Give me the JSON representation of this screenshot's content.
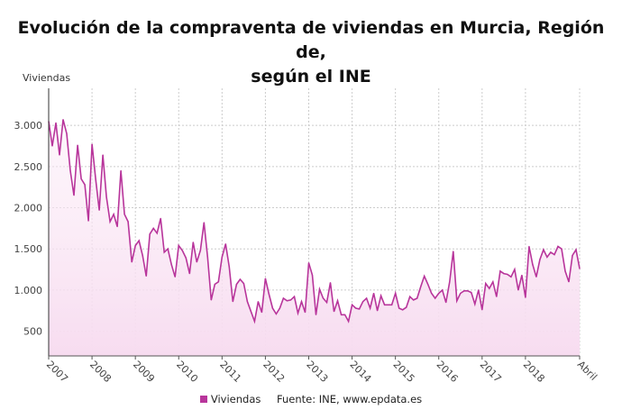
{
  "chart_data": {
    "type": "area",
    "title": "Evolución de la compraventa de viviendas en Murcia, Región de, según el INE",
    "ylabel": "Viviendas",
    "xlabel": "",
    "x_start": "2007-01",
    "x_end": "2019-04",
    "x_tick_labels": [
      "2007",
      "2008",
      "2009",
      "2010",
      "2011",
      "2012",
      "2013",
      "2014",
      "2015",
      "2016",
      "2017",
      "2018",
      "Abril"
    ],
    "y_ticks": [
      500,
      1000,
      1500,
      2000,
      2500,
      3000
    ],
    "y_tick_labels": [
      "500",
      "1.000",
      "1.500",
      "2.000",
      "2.500",
      "3.000"
    ],
    "ylim": [
      200,
      3450
    ],
    "grid": true,
    "legend_position": "bottom",
    "series": [
      {
        "name": "Viviendas",
        "color": "#b8359b",
        "values": [
          3050,
          2750,
          3030,
          2640,
          3070,
          2900,
          2450,
          2150,
          2760,
          2350,
          2280,
          1840,
          2770,
          2350,
          1970,
          2640,
          2130,
          1830,
          1920,
          1770,
          2450,
          1920,
          1830,
          1340,
          1540,
          1600,
          1420,
          1170,
          1680,
          1750,
          1690,
          1870,
          1460,
          1500,
          1310,
          1160,
          1540,
          1480,
          1390,
          1200,
          1580,
          1340,
          1480,
          1820,
          1400,
          880,
          1070,
          1100,
          1400,
          1560,
          1280,
          860,
          1070,
          1130,
          1080,
          860,
          740,
          620,
          860,
          730,
          1140,
          950,
          780,
          710,
          780,
          900,
          870,
          880,
          920,
          720,
          860,
          730,
          1330,
          1180,
          700,
          1010,
          900,
          850,
          1090,
          740,
          870,
          700,
          700,
          620,
          820,
          780,
          770,
          860,
          900,
          780,
          960,
          750,
          930,
          820,
          820,
          820,
          960,
          780,
          760,
          790,
          920,
          880,
          900,
          1040,
          1170,
          1070,
          960,
          900,
          960,
          1000,
          850,
          1100,
          1470,
          870,
          960,
          990,
          990,
          970,
          830,
          1000,
          760,
          1080,
          1020,
          1100,
          920,
          1230,
          1200,
          1190,
          1160,
          1250,
          1000,
          1180,
          910,
          1530,
          1310,
          1160,
          1370,
          1490,
          1400,
          1460,
          1430,
          1530,
          1500,
          1230,
          1100,
          1420,
          1490,
          1260
        ]
      }
    ],
    "source": "Fuente: INE, www.epdata.es"
  },
  "title_line1": "Evolución de la compraventa de viviendas en Murcia, Región de,",
  "title_line2": "según el INE"
}
